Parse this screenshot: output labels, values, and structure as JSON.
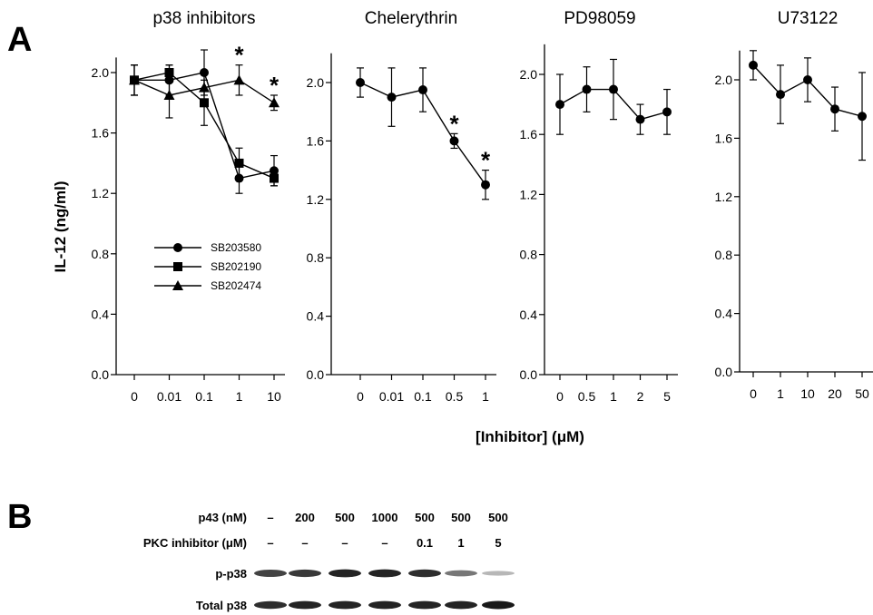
{
  "panel_a_label": "A",
  "panel_b_label": "B",
  "y_axis_label": "IL-12 (ng/ml)",
  "x_axis_label": "[Inhibitor] (μM)",
  "significance_marker": "*",
  "chart_data": [
    {
      "type": "line",
      "title": "p38 inhibitors",
      "categories": [
        "0",
        "0.01",
        "0.1",
        "1",
        "10"
      ],
      "ylim": [
        0,
        2.1
      ],
      "yticks": [
        "0.0",
        "0.4",
        "0.8",
        "1.2",
        "1.6",
        "2.0"
      ],
      "series": [
        {
          "name": "SB203580",
          "marker": "circle",
          "values": [
            1.95,
            1.95,
            2.0,
            1.3,
            1.35
          ],
          "errors": [
            0.1,
            0.1,
            0.15,
            0.1,
            0.1
          ]
        },
        {
          "name": "SB202190",
          "marker": "square",
          "values": [
            1.95,
            2.0,
            1.8,
            1.4,
            1.3
          ],
          "errors": [
            0.1,
            0.05,
            0.15,
            0.1,
            0.05
          ]
        },
        {
          "name": "SB202474",
          "marker": "triangle",
          "values": [
            1.95,
            1.85,
            1.9,
            1.95,
            1.8
          ],
          "errors": [
            0.1,
            0.15,
            0.1,
            0.1,
            0.05
          ]
        }
      ],
      "significance": [
        3,
        4
      ],
      "legend": "inside, lower-left"
    },
    {
      "type": "line",
      "title": "Chelerythrin",
      "categories": [
        "0",
        "0.01",
        "0.1",
        "0.5",
        "1"
      ],
      "ylim": [
        0,
        2.2
      ],
      "yticks": [
        "0.0",
        "0.4",
        "0.8",
        "1.2",
        "1.6",
        "2.0"
      ],
      "series": [
        {
          "name": "",
          "marker": "circle",
          "values": [
            2.0,
            1.9,
            1.95,
            1.6,
            1.3
          ],
          "errors": [
            0.1,
            0.2,
            0.15,
            0.05,
            0.1
          ]
        }
      ],
      "significance": [
        3,
        4
      ]
    },
    {
      "type": "line",
      "title": "PD98059",
      "categories": [
        "0",
        "0.5",
        "1",
        "2",
        "5"
      ],
      "ylim": [
        0,
        2.2
      ],
      "yticks": [
        "0.0",
        "0.4",
        "0.8",
        "1.2",
        "1.6",
        "2.0"
      ],
      "series": [
        {
          "name": "",
          "marker": "circle",
          "values": [
            1.8,
            1.9,
            1.9,
            1.7,
            1.75
          ],
          "errors": [
            0.2,
            0.15,
            0.2,
            0.1,
            0.15
          ]
        }
      ],
      "significance": []
    },
    {
      "type": "line",
      "title": "U73122",
      "categories": [
        "0",
        "1",
        "10",
        "20",
        "50"
      ],
      "ylim": [
        0,
        2.2
      ],
      "yticks": [
        "0.0",
        "0.4",
        "0.8",
        "1.2",
        "1.6",
        "2.0"
      ],
      "series": [
        {
          "name": "",
          "marker": "circle",
          "values": [
            2.1,
            1.9,
            2.0,
            1.8,
            1.75
          ],
          "errors": [
            0.1,
            0.2,
            0.15,
            0.15,
            0.3
          ]
        }
      ],
      "significance": []
    }
  ],
  "western_blot": {
    "rows": [
      {
        "label": "p43 (nM)",
        "values": [
          "–",
          "200",
          "500",
          "1000",
          "500",
          "500",
          "500"
        ]
      },
      {
        "label": "PKC inhibitor (μM)",
        "values": [
          "–",
          "–",
          "–",
          "–",
          "0.1",
          "1",
          "5"
        ]
      }
    ],
    "bands": [
      {
        "label": "p-p38",
        "intensities": [
          0.8,
          0.85,
          0.95,
          0.95,
          0.9,
          0.55,
          0.25
        ]
      },
      {
        "label": "Total p38",
        "intensities": [
          0.9,
          0.95,
          0.95,
          0.95,
          0.95,
          0.95,
          1.0
        ]
      }
    ]
  }
}
